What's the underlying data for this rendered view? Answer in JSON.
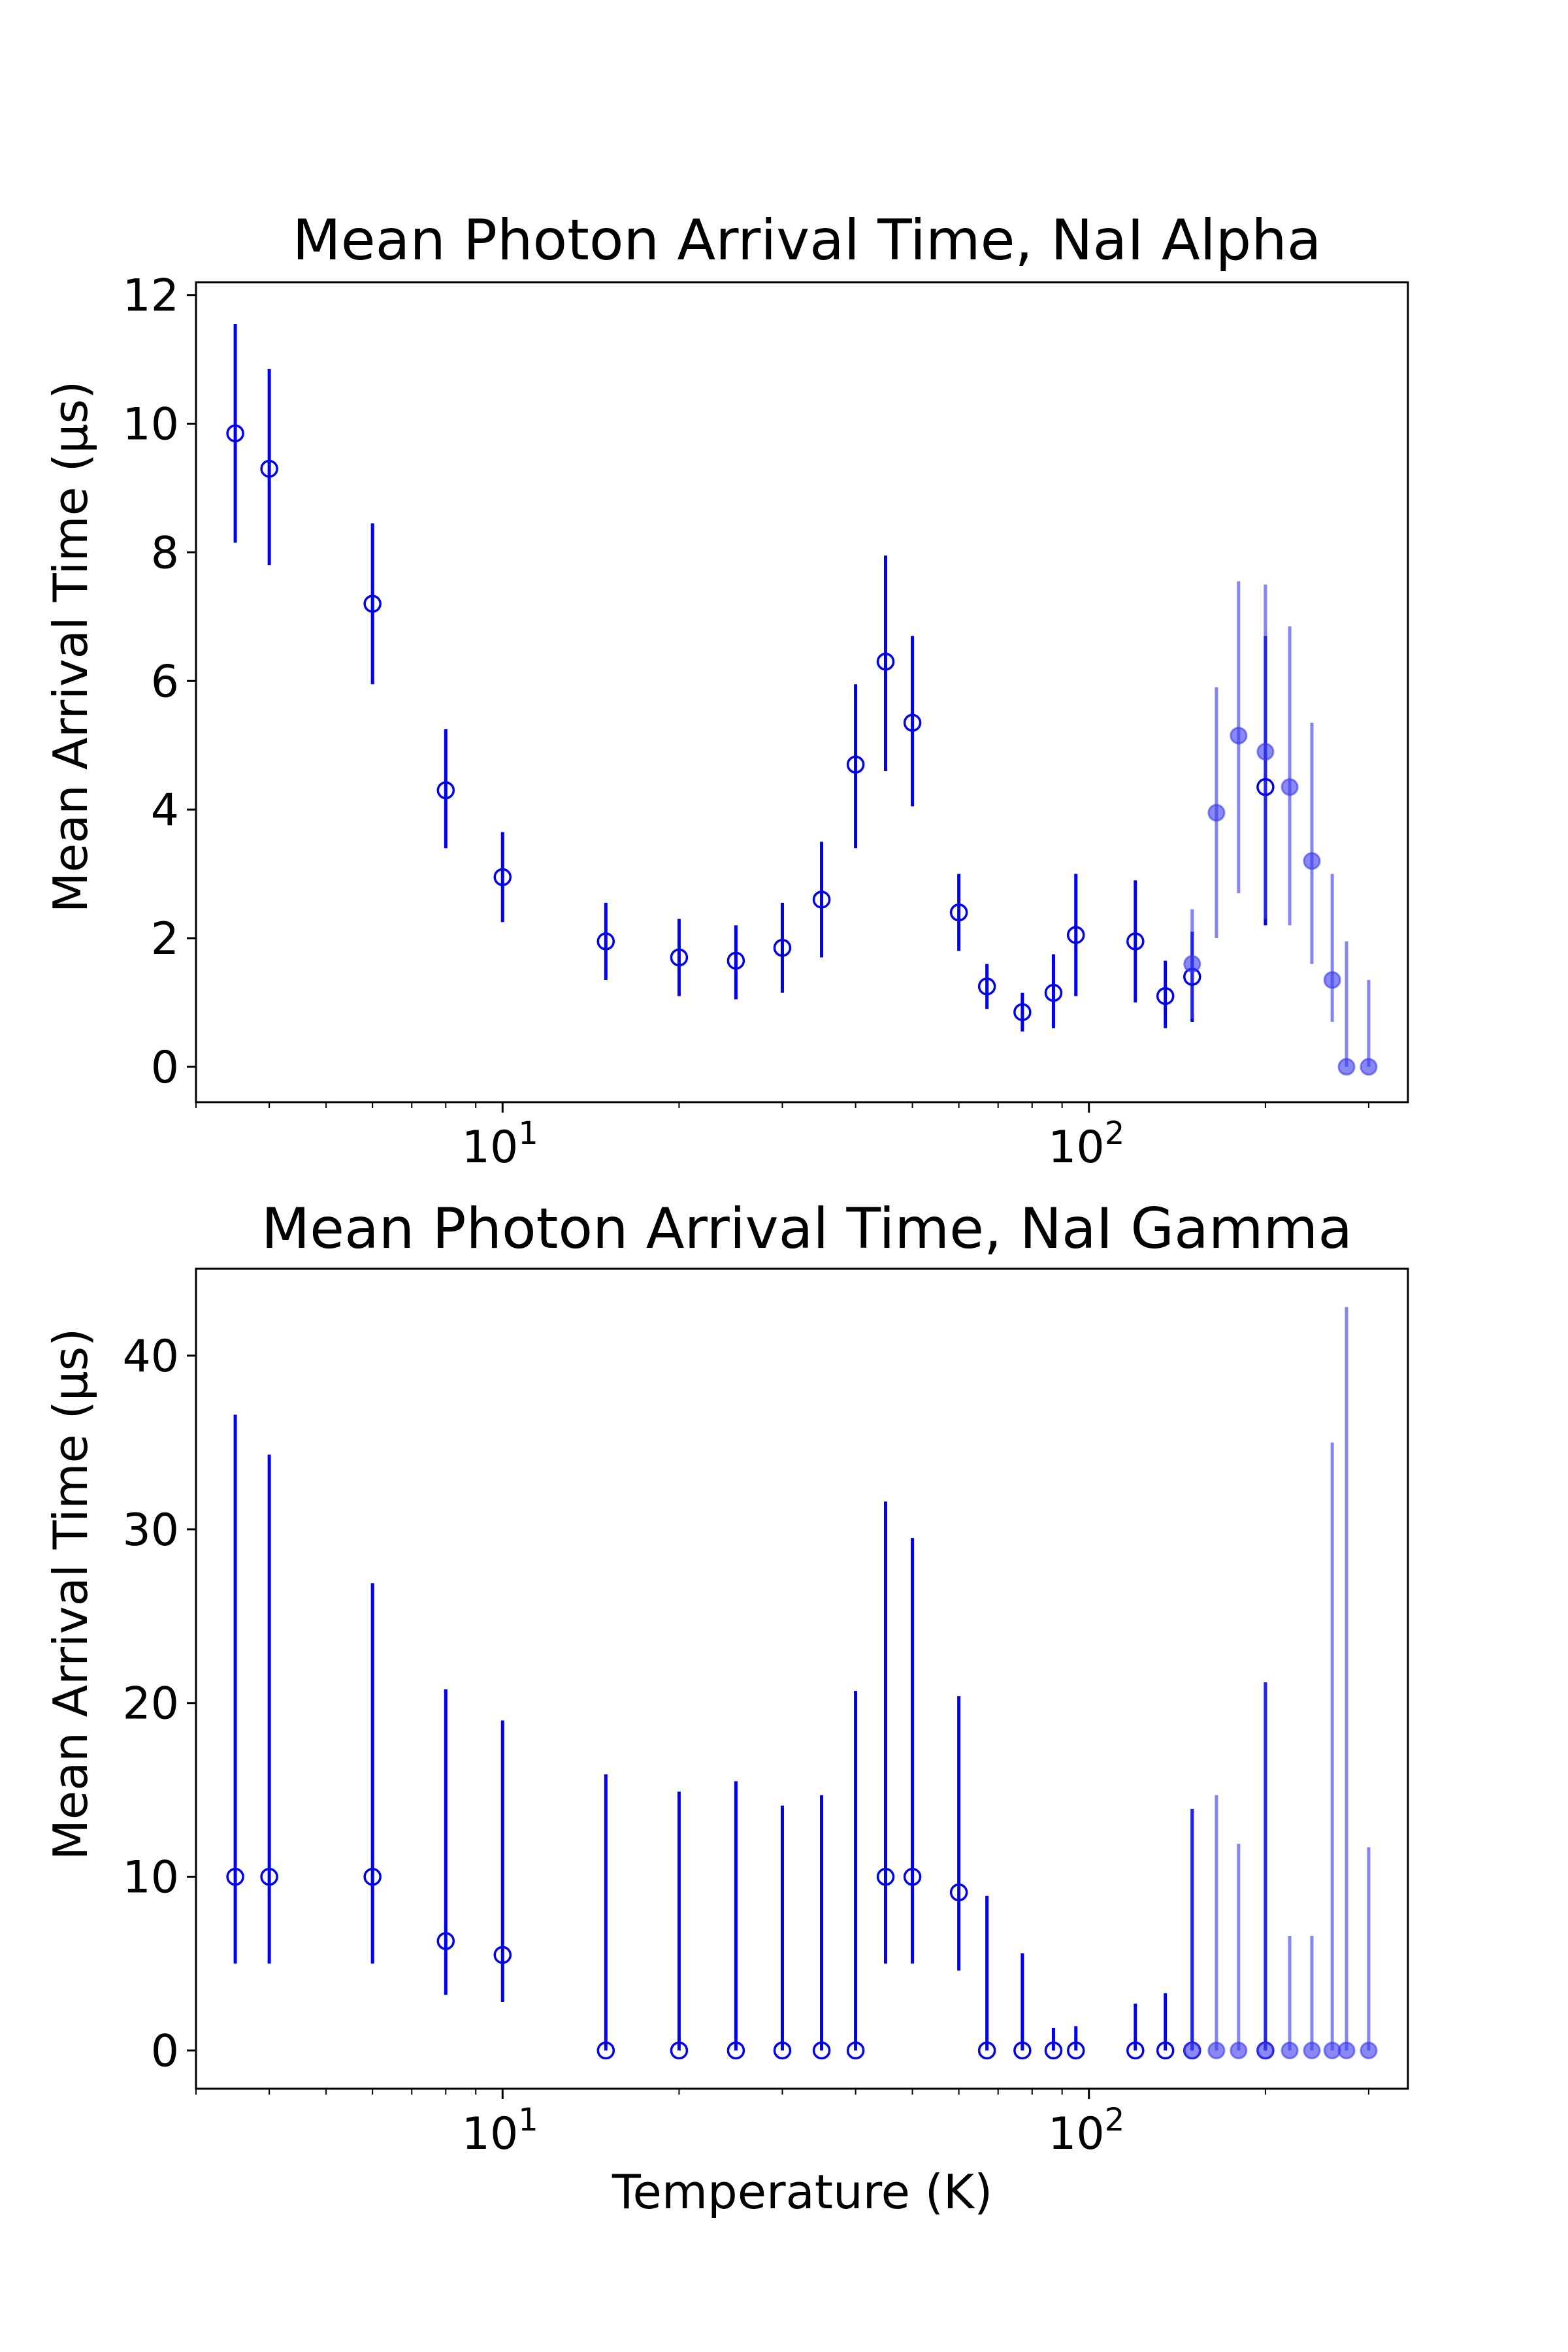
{
  "chart_data": [
    {
      "type": "scatter",
      "title": "Mean Photon Arrival Time, NaI Alpha",
      "xlabel": "",
      "ylabel": "Mean Arrival Time (μs)",
      "xscale": "log",
      "xlim": [
        3.0,
        350
      ],
      "ylim": [
        -0.55,
        12.2
      ],
      "yticks": [
        0,
        2,
        4,
        6,
        8,
        10,
        12
      ],
      "ytick_labels": [
        "0",
        "2",
        "4",
        "6",
        "8",
        "10",
        "12"
      ],
      "xtick_labels": [
        {
          "base": "10",
          "exp": "1",
          "value": 10
        },
        {
          "base": "10",
          "exp": "2",
          "value": 100
        }
      ],
      "series": [
        {
          "name": "open",
          "style": "open",
          "color": "#0000ee",
          "points": [
            {
              "x": 3.5,
              "y": 9.85,
              "lo": 8.15,
              "hi": 11.55
            },
            {
              "x": 4,
              "y": 9.3,
              "lo": 7.8,
              "hi": 10.85
            },
            {
              "x": 6,
              "y": 7.2,
              "lo": 5.95,
              "hi": 8.45
            },
            {
              "x": 8,
              "y": 4.3,
              "lo": 3.4,
              "hi": 5.25
            },
            {
              "x": 10,
              "y": 2.95,
              "lo": 2.25,
              "hi": 3.65
            },
            {
              "x": 15,
              "y": 1.95,
              "lo": 1.35,
              "hi": 2.55
            },
            {
              "x": 20,
              "y": 1.7,
              "lo": 1.1,
              "hi": 2.3
            },
            {
              "x": 25,
              "y": 1.65,
              "lo": 1.05,
              "hi": 2.2
            },
            {
              "x": 30,
              "y": 1.85,
              "lo": 1.15,
              "hi": 2.55
            },
            {
              "x": 35,
              "y": 2.6,
              "lo": 1.7,
              "hi": 3.5
            },
            {
              "x": 40,
              "y": 4.7,
              "lo": 3.4,
              "hi": 5.95
            },
            {
              "x": 45,
              "y": 6.3,
              "lo": 4.6,
              "hi": 7.95
            },
            {
              "x": 50,
              "y": 5.35,
              "lo": 4.05,
              "hi": 6.7
            },
            {
              "x": 60,
              "y": 2.4,
              "lo": 1.8,
              "hi": 3.0
            },
            {
              "x": 67,
              "y": 1.25,
              "lo": 0.9,
              "hi": 1.6
            },
            {
              "x": 77,
              "y": 0.85,
              "lo": 0.55,
              "hi": 1.15
            },
            {
              "x": 87,
              "y": 1.15,
              "lo": 0.6,
              "hi": 1.75
            },
            {
              "x": 95,
              "y": 2.05,
              "lo": 1.1,
              "hi": 3.0
            },
            {
              "x": 120,
              "y": 1.95,
              "lo": 1.0,
              "hi": 2.9
            },
            {
              "x": 135,
              "y": 1.1,
              "lo": 0.6,
              "hi": 1.65
            },
            {
              "x": 150,
              "y": 1.4,
              "lo": 0.7,
              "hi": 2.1
            },
            {
              "x": 200,
              "y": 4.35,
              "lo": 2.2,
              "hi": 6.7
            }
          ]
        },
        {
          "name": "filled",
          "style": "filled",
          "color": "#5555ee",
          "points": [
            {
              "x": 150,
              "y": 1.6,
              "lo": 0.75,
              "hi": 2.45
            },
            {
              "x": 165,
              "y": 3.95,
              "lo": 2.0,
              "hi": 5.9
            },
            {
              "x": 180,
              "y": 5.15,
              "lo": 2.7,
              "hi": 7.55
            },
            {
              "x": 200,
              "y": 4.9,
              "lo": 2.3,
              "hi": 7.5
            },
            {
              "x": 220,
              "y": 4.35,
              "lo": 2.2,
              "hi": 6.85
            },
            {
              "x": 240,
              "y": 3.2,
              "lo": 1.6,
              "hi": 5.35
            },
            {
              "x": 260,
              "y": 1.35,
              "lo": 0.7,
              "hi": 3.0
            },
            {
              "x": 275,
              "y": 0.0,
              "lo": 0.0,
              "hi": 1.95
            },
            {
              "x": 300,
              "y": 0.0,
              "lo": 0.0,
              "hi": 1.35
            }
          ]
        }
      ]
    },
    {
      "type": "scatter",
      "title": "Mean Photon Arrival Time, NaI Gamma",
      "xlabel": "Temperature (K)",
      "ylabel": "Mean Arrival Time (μs)",
      "xscale": "log",
      "xlim": [
        3.0,
        350
      ],
      "ylim": [
        -2.2,
        45.0
      ],
      "yticks": [
        0,
        10,
        20,
        30,
        40
      ],
      "ytick_labels": [
        "0",
        "10",
        "20",
        "30",
        "40"
      ],
      "xtick_labels": [
        {
          "base": "10",
          "exp": "1",
          "value": 10
        },
        {
          "base": "10",
          "exp": "2",
          "value": 100
        }
      ],
      "series": [
        {
          "name": "open",
          "style": "open",
          "color": "#0000ee",
          "points": [
            {
              "x": 3.5,
              "y": 10.0,
              "lo": 5.0,
              "hi": 36.6
            },
            {
              "x": 4,
              "y": 10.0,
              "lo": 5.0,
              "hi": 34.3
            },
            {
              "x": 6,
              "y": 10.0,
              "lo": 5.0,
              "hi": 26.9
            },
            {
              "x": 8,
              "y": 6.3,
              "lo": 3.2,
              "hi": 20.8
            },
            {
              "x": 10,
              "y": 5.5,
              "lo": 2.8,
              "hi": 19.0
            },
            {
              "x": 15,
              "y": 0.0,
              "lo": 0.0,
              "hi": 15.9
            },
            {
              "x": 20,
              "y": 0.0,
              "lo": 0.0,
              "hi": 14.9
            },
            {
              "x": 25,
              "y": 0.0,
              "lo": 0.0,
              "hi": 15.5
            },
            {
              "x": 30,
              "y": 0.0,
              "lo": 0.0,
              "hi": 14.1
            },
            {
              "x": 35,
              "y": 0.0,
              "lo": 0.0,
              "hi": 14.7
            },
            {
              "x": 40,
              "y": 0.0,
              "lo": 0.0,
              "hi": 20.7
            },
            {
              "x": 45,
              "y": 10.0,
              "lo": 5.0,
              "hi": 31.6
            },
            {
              "x": 50,
              "y": 10.0,
              "lo": 5.0,
              "hi": 29.5
            },
            {
              "x": 60,
              "y": 9.1,
              "lo": 4.6,
              "hi": 20.4
            },
            {
              "x": 67,
              "y": 0.0,
              "lo": 0.0,
              "hi": 8.9
            },
            {
              "x": 77,
              "y": 0.0,
              "lo": 0.0,
              "hi": 5.6
            },
            {
              "x": 87,
              "y": 0.0,
              "lo": 0.0,
              "hi": 1.3
            },
            {
              "x": 95,
              "y": 0.0,
              "lo": 0.0,
              "hi": 1.4
            },
            {
              "x": 120,
              "y": 0.0,
              "lo": 0.0,
              "hi": 2.7
            },
            {
              "x": 135,
              "y": 0.0,
              "lo": 0.0,
              "hi": 3.3
            },
            {
              "x": 150,
              "y": 0.0,
              "lo": 0.0,
              "hi": 13.9
            },
            {
              "x": 200,
              "y": 0.0,
              "lo": 0.0,
              "hi": 21.2
            }
          ]
        },
        {
          "name": "filled",
          "style": "filled",
          "color": "#5555ee",
          "points": [
            {
              "x": 150,
              "y": 0.0,
              "lo": 0.0,
              "hi": 13.9
            },
            {
              "x": 165,
              "y": 0.0,
              "lo": 0.0,
              "hi": 14.7
            },
            {
              "x": 180,
              "y": 0.0,
              "lo": 0.0,
              "hi": 11.9
            },
            {
              "x": 200,
              "y": 0.0,
              "lo": 0.0,
              "hi": 21.2
            },
            {
              "x": 220,
              "y": 0.0,
              "lo": 0.0,
              "hi": 6.6
            },
            {
              "x": 240,
              "y": 0.0,
              "lo": 0.0,
              "hi": 6.6
            },
            {
              "x": 260,
              "y": 0.0,
              "lo": 0.0,
              "hi": 35.0
            },
            {
              "x": 275,
              "y": 0.0,
              "lo": 0.0,
              "hi": 42.8
            },
            {
              "x": 300,
              "y": 0.0,
              "lo": 0.0,
              "hi": 11.7
            }
          ]
        }
      ]
    }
  ]
}
